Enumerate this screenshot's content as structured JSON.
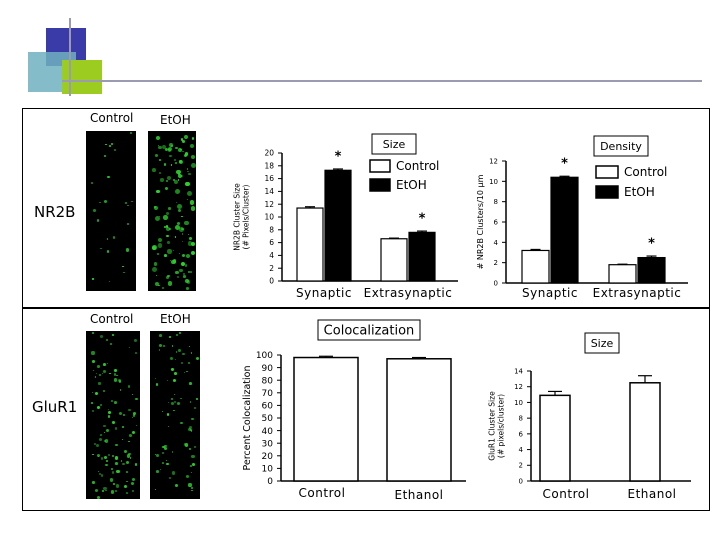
{
  "colors": {
    "etoh_bar": "#000000",
    "control_bar": "#ffffff",
    "puncta": "#2bd62b",
    "deco_blue": "#3a3aa8",
    "deco_green": "#9ccc1f",
    "deco_teal": "#6fb0c0"
  },
  "image_labels": {
    "top": {
      "control": "Control",
      "etoh": "EtOH",
      "row": "NR2B"
    },
    "bottom": {
      "control": "Control",
      "etoh": "EtOH",
      "row": "GluR1"
    }
  },
  "chart_data": [
    {
      "id": "nr2b_size",
      "type": "bar",
      "title": "Size",
      "ylabel": "NR2B Cluster Size (# Pixels/Cluster)",
      "ylim": [
        0,
        20
      ],
      "yticks": [
        "0",
        "2",
        "4",
        "6",
        "8",
        "10",
        "12",
        "14",
        "16",
        "18",
        "20"
      ],
      "categories": [
        "Synaptic",
        "Extrasynaptic"
      ],
      "series": [
        {
          "name": "Control",
          "values": [
            11.4,
            6.6
          ],
          "errors": [
            0.2,
            0.1
          ]
        },
        {
          "name": "EtOH",
          "values": [
            17.3,
            7.6
          ],
          "errors": [
            0.2,
            0.2
          ]
        }
      ],
      "annotations": [
        "*",
        "*"
      ],
      "legend": "inside top-right"
    },
    {
      "id": "nr2b_density",
      "type": "bar",
      "title": "Density",
      "ylabel": "# NR2B Clusters/10 µm",
      "ylim": [
        0,
        12
      ],
      "yticks": [
        "0",
        "2",
        "4",
        "6",
        "8",
        "10",
        "12"
      ],
      "categories": [
        "Synaptic",
        "Extrasynaptic"
      ],
      "series": [
        {
          "name": "Control",
          "values": [
            3.2,
            1.8
          ],
          "errors": [
            0.1,
            0.05
          ]
        },
        {
          "name": "EtOH",
          "values": [
            10.4,
            2.5
          ],
          "errors": [
            0.1,
            0.15
          ]
        }
      ],
      "annotations": [
        "*",
        "*"
      ],
      "legend": "inside top-right"
    },
    {
      "id": "glur1_colocalization",
      "type": "bar",
      "title": "Colocalization",
      "ylabel": "Percent Colocalization",
      "ylim": [
        0,
        100
      ],
      "yticks": [
        "0",
        "10",
        "20",
        "30",
        "40",
        "50",
        "60",
        "70",
        "80",
        "90",
        "100"
      ],
      "categories": [
        "Control",
        "Ethanol"
      ],
      "values": [
        98,
        97
      ],
      "errors": [
        1,
        1
      ]
    },
    {
      "id": "glur1_size",
      "type": "bar",
      "title": "Size",
      "ylabel": "GluR1 Cluster Size (# pixels/cluster)",
      "ylim": [
        0,
        14
      ],
      "yticks": [
        "0",
        "2",
        "4",
        "6",
        "8",
        "10",
        "12",
        "14"
      ],
      "categories": [
        "Control",
        "Ethanol"
      ],
      "values": [
        10.9,
        12.5
      ],
      "errors": [
        0.5,
        0.9
      ]
    }
  ]
}
